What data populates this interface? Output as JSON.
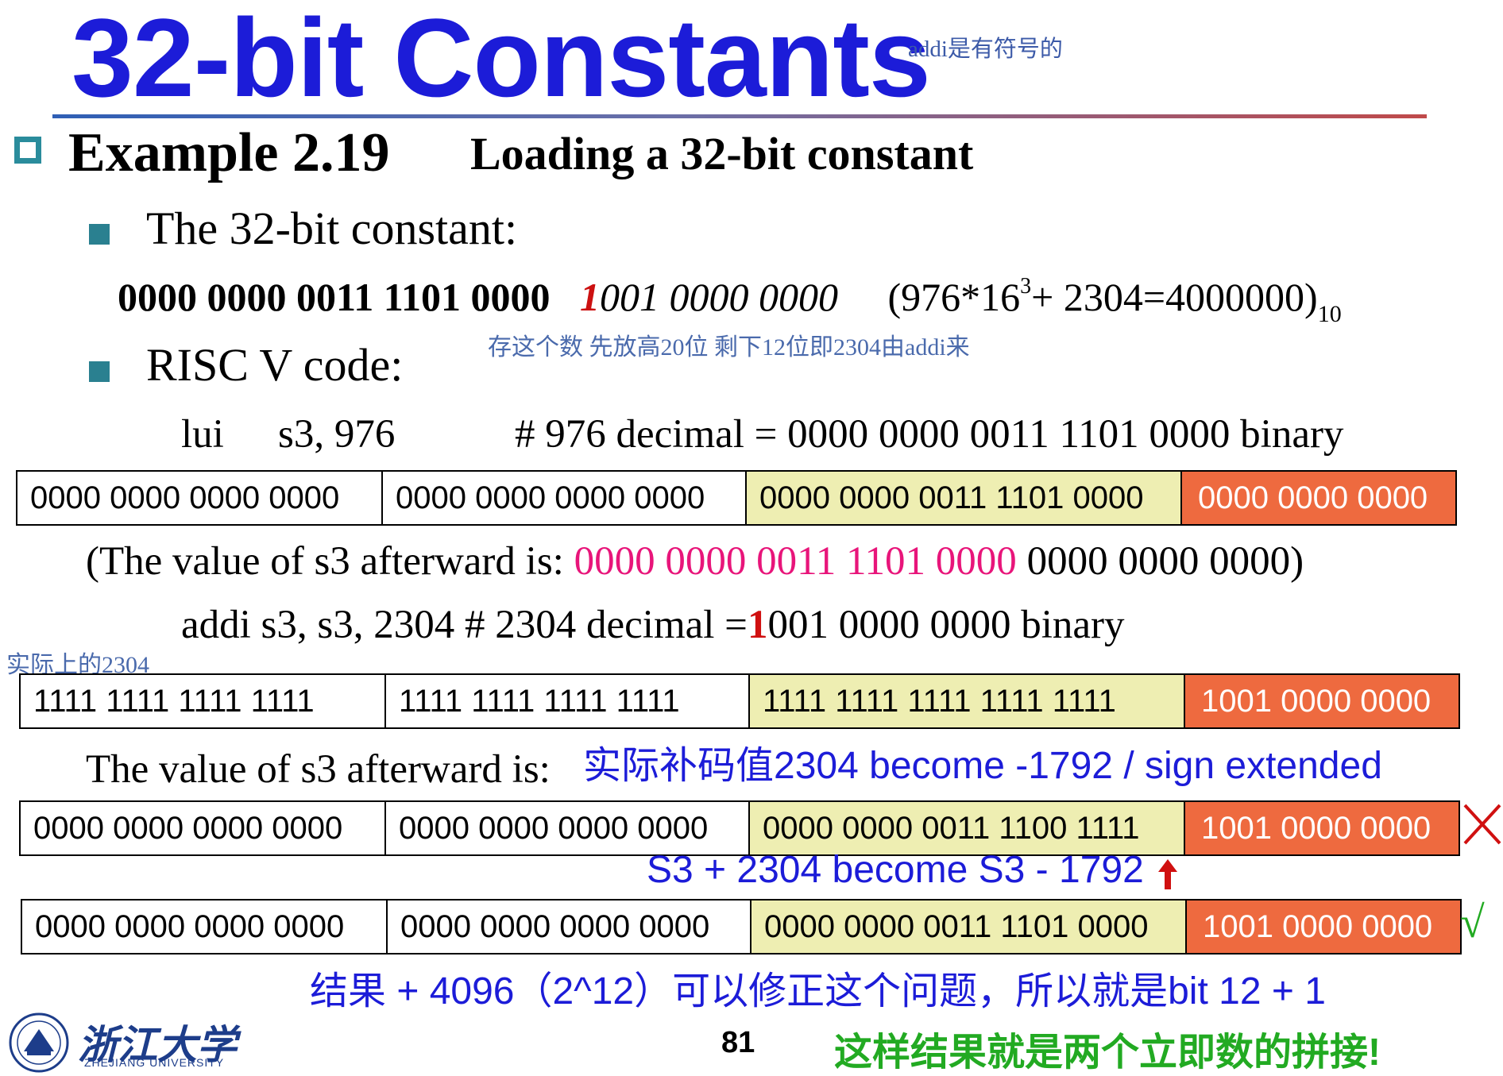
{
  "title": "32-bit Constants",
  "title_note": "addi是有符号的",
  "example": {
    "label": "Example 2.19",
    "subtitle": "Loading a 32-bit constant"
  },
  "bullets": {
    "constant": "The 32-bit constant:",
    "risc": "RISC V code:"
  },
  "binary_line": {
    "upper": "0000 0000 0011 1101 0000",
    "bit12": "1",
    "lower_rest": "001 0000 0000",
    "formula_pre": "(976*16",
    "formula_exp": "3",
    "formula_post": "+ 2304=4000000)",
    "formula_base": "10"
  },
  "note_store": "存这个数  先放高20位  剩下12位即2304由addi来",
  "lui_line": {
    "op": "lui",
    "args": "s3, 976",
    "comment": "#  976 decimal  =  0000 0000 0011 1101  0000 binary"
  },
  "reg1": {
    "w1": "0000 0000 0000 0000",
    "w2": "0000 0000 0000 0000",
    "y": "0000 0000 0011 1101 0000",
    "o": "0000 0000 0000"
  },
  "value_after_lui": {
    "pre": "(The value of s3 afterward is: ",
    "pink": "0000 0000 0011 1101  0000",
    "post": " 0000 0000 0000)"
  },
  "addi_line": {
    "text": "addi  s3, s3, 2304  #  2304 decimal  =",
    "bit": "1",
    "rest": "001 0000 0000 binary"
  },
  "note_actual": "实际上的2304",
  "reg2": {
    "w1": "1111 1111 1111 1111",
    "w2": "1111 1111 1111 1111",
    "y": "1111 1111 1111 1111 1111",
    "o": "1001 0000 0000"
  },
  "value_after_addi": "The value of s3 afterward is:",
  "note_sign": "实际补码值2304 become -1792 / sign extended",
  "reg3": {
    "w1": "0000 0000 0000 0000",
    "w2": "0000 0000 0000 0000",
    "y": "0000 0000 0011 1100 1111",
    "o": "1001 0000 0000"
  },
  "note_become": "S3 + 2304 become S3 - 1792",
  "reg4": {
    "w1": "0000 0000 0000 0000",
    "w2": "0000 0000 0000 0000",
    "y": "0000 0000 0011 1101 0000",
    "o": "1001 0000 0000"
  },
  "mark_ok": "√",
  "note_fix": "结果 + 4096（2^12）可以修正这个问题，所以就是bit 12 + 1",
  "footer": {
    "logo_cn": "浙江大学",
    "logo_en": "ZHEJIANG UNIVERSITY",
    "page": "81",
    "concat_note": "这样结果就是两个立即数的拼接!"
  },
  "colors": {
    "title": "#1c1cd8",
    "note_gray_blue": "#4a6aac",
    "upper_field": "#eeeeb2",
    "lower_field": "#ee6a3f",
    "green": "#22aa22",
    "red": "#d01010",
    "pink": "#e8157a"
  },
  "icons": [
    "hollow-square-bullet",
    "square-bullet",
    "cross-mark-icon",
    "check-mark-icon",
    "up-arrow-icon",
    "zju-logo-icon"
  ]
}
